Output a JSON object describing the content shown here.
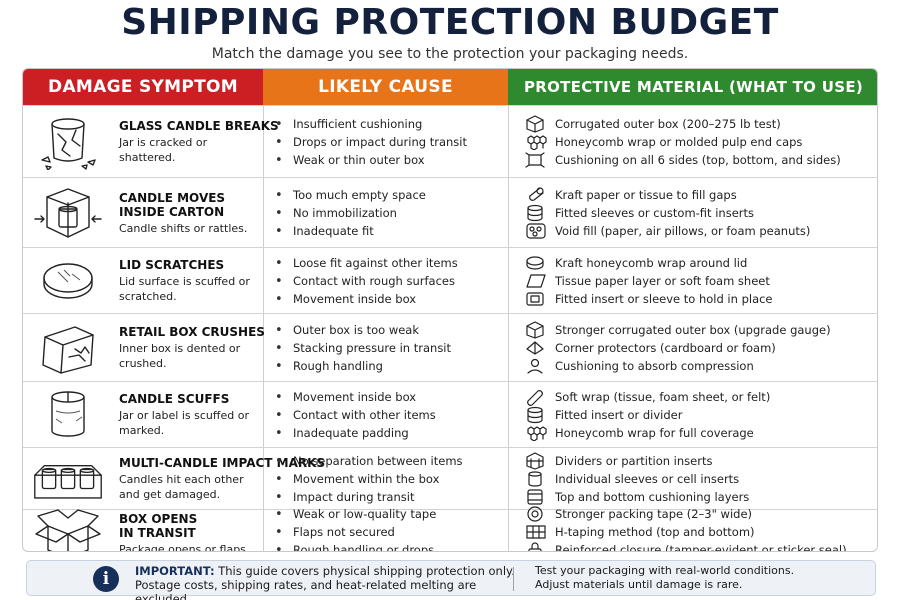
{
  "title": "SHIPPING PROTECTION BUDGET",
  "subtitle": "Match the damage you see to the protection your packaging needs.",
  "headers": {
    "symptom": "DAMAGE SYMPTOM",
    "cause": "LIKELY CAUSE",
    "material": "PROTECTIVE MATERIAL (WHAT TO USE)"
  },
  "colors": {
    "symptom": "#cc1f24",
    "cause": "#e8741a",
    "material": "#2f8a2f",
    "title": "#14213d"
  },
  "rows": [
    {
      "icon": "broken-jar-icon",
      "title": "GLASS CANDLE BREAKS",
      "desc": "Jar is cracked or shattered.",
      "causes": [
        "Insufficient cushioning",
        "Drops or impact during transit",
        "Weak or thin outer box"
      ],
      "materials": [
        {
          "icon": "box-icon",
          "text": "Corrugated outer box (200–275 lb test)"
        },
        {
          "icon": "honeycomb-icon",
          "text": "Honeycomb wrap or molded pulp end caps"
        },
        {
          "icon": "cushion-icon",
          "text": "Cushioning on all 6 sides (top, bottom, and sides)"
        }
      ]
    },
    {
      "icon": "candle-in-carton-icon",
      "title": "CANDLE MOVES\nINSIDE CARTON",
      "desc": "Candle shifts or rattles.",
      "causes": [
        "Too much empty space",
        "No immobilization",
        "Inadequate fit"
      ],
      "materials": [
        {
          "icon": "paper-roll-icon",
          "text": "Kraft paper or tissue to fill gaps"
        },
        {
          "icon": "sleeve-icon",
          "text": "Fitted sleeves or custom-fit inserts"
        },
        {
          "icon": "void-fill-icon",
          "text": "Void fill (paper, air pillows, or foam peanuts)"
        }
      ]
    },
    {
      "icon": "lid-icon",
      "title": "LID SCRATCHES",
      "desc": "Lid surface is scuffed or scratched.",
      "causes": [
        "Loose fit against other items",
        "Contact with rough surfaces",
        "Movement inside box"
      ],
      "materials": [
        {
          "icon": "honeycomb-lid-icon",
          "text": "Kraft honeycomb wrap around lid"
        },
        {
          "icon": "tissue-sheet-icon",
          "text": "Tissue paper layer or soft foam sheet"
        },
        {
          "icon": "insert-icon",
          "text": "Fitted insert or sleeve to hold in place"
        }
      ]
    },
    {
      "icon": "crushed-box-icon",
      "title": "RETAIL BOX CRUSHES",
      "desc": "Inner box is dented or crushed.",
      "causes": [
        "Outer box is too weak",
        "Stacking pressure in transit",
        "Rough handling"
      ],
      "materials": [
        {
          "icon": "box-icon",
          "text": "Stronger corrugated outer box (upgrade gauge)"
        },
        {
          "icon": "corner-protector-icon",
          "text": "Corner protectors (cardboard or foam)"
        },
        {
          "icon": "compression-icon",
          "text": "Cushioning to absorb compression"
        }
      ]
    },
    {
      "icon": "candle-jar-icon",
      "title": "CANDLE SCUFFS",
      "desc": "Jar or label is scuffed or marked.",
      "causes": [
        "Movement inside box",
        "Contact with other items",
        "Inadequate padding"
      ],
      "materials": [
        {
          "icon": "soft-wrap-icon",
          "text": "Soft wrap (tissue, foam sheet, or felt)"
        },
        {
          "icon": "sleeve-icon",
          "text": "Fitted insert or divider"
        },
        {
          "icon": "honeycomb-icon",
          "text": "Honeycomb wrap for full coverage"
        }
      ]
    },
    {
      "icon": "multi-candle-tray-icon",
      "title": "MULTI-CANDLE IMPACT MARKS",
      "desc": "Candles hit each other and get damaged.",
      "causes": [
        "No separation between items",
        "Movement within the box",
        "Impact during transit"
      ],
      "materials": [
        {
          "icon": "divider-icon",
          "text": "Dividers or partition inserts"
        },
        {
          "icon": "cell-sleeve-icon",
          "text": "Individual sleeves or cell inserts"
        },
        {
          "icon": "layers-icon",
          "text": "Top and bottom cushioning layers"
        }
      ]
    },
    {
      "icon": "open-box-icon",
      "title": "BOX OPENS\nIN TRANSIT",
      "desc": "Package opens or flaps pop up.",
      "causes": [
        "Weak or low-quality tape",
        "Flaps not secured",
        "Rough handling or drops"
      ],
      "materials": [
        {
          "icon": "tape-icon",
          "text": "Stronger packing tape (2–3\" wide)"
        },
        {
          "icon": "h-tape-icon",
          "text": "H-taping method (top and bottom)"
        },
        {
          "icon": "lock-icon",
          "text": "Reinforced closure (tamper-evident or sticker seal)"
        }
      ]
    }
  ],
  "note": {
    "label": "IMPORTANT:",
    "text1": " This guide covers physical shipping protection only.",
    "text2": "Postage costs, shipping rates, and heat-related melting are excluded.",
    "right1": "Test your packaging with real-world conditions.",
    "right2": "Adjust materials until damage is rare."
  }
}
